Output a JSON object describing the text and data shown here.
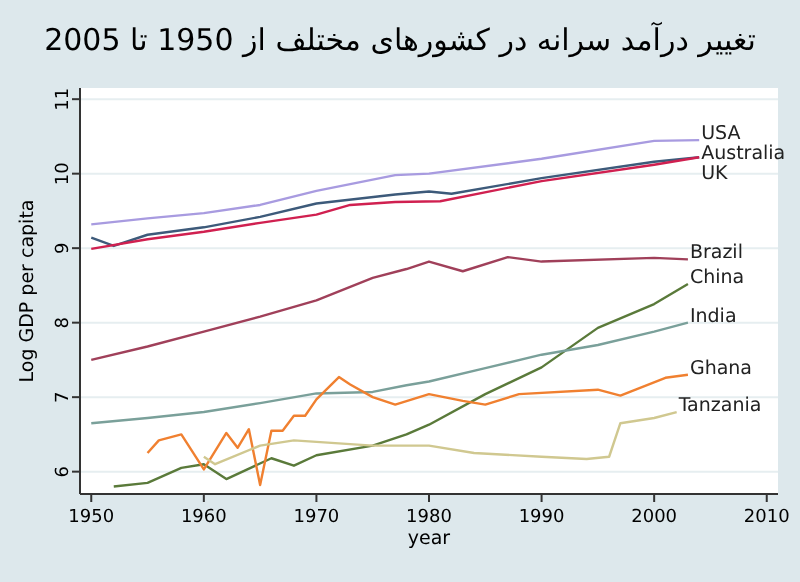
{
  "chart_data": {
    "type": "line",
    "title": "تغییر درآمد سرانه در کشورهای مختلف از 1950 تا 2005",
    "xlabel": "year",
    "ylabel": "Log GDP per capita",
    "xlim": [
      1949,
      2011
    ],
    "ylim": [
      5.7,
      11.15
    ],
    "xticks": [
      1950,
      1960,
      1970,
      1980,
      1990,
      2000,
      2010
    ],
    "yticks": [
      6,
      7,
      8,
      9,
      10,
      11
    ],
    "grid": "y",
    "series": [
      {
        "name": "USA",
        "color": "#a89be0",
        "x": [
          1950,
          1955,
          1960,
          1965,
          1970,
          1977,
          1980,
          1990,
          2000,
          2004
        ],
        "values": [
          9.32,
          9.4,
          9.47,
          9.58,
          9.77,
          9.98,
          10.0,
          10.2,
          10.44,
          10.45
        ]
      },
      {
        "name": "Australia",
        "color": "#3d5a7a",
        "x": [
          1950,
          1952,
          1955,
          1960,
          1965,
          1970,
          1977,
          1980,
          1982,
          1990,
          2000,
          2004
        ],
        "values": [
          9.14,
          9.03,
          9.18,
          9.28,
          9.42,
          9.6,
          9.72,
          9.76,
          9.73,
          9.94,
          10.16,
          10.22
        ]
      },
      {
        "name": "UK",
        "color": "#d02050",
        "x": [
          1950,
          1955,
          1960,
          1965,
          1970,
          1973,
          1977,
          1981,
          1990,
          2000,
          2004
        ],
        "values": [
          8.99,
          9.12,
          9.22,
          9.34,
          9.45,
          9.58,
          9.62,
          9.63,
          9.9,
          10.12,
          10.22
        ]
      },
      {
        "name": "Brazil",
        "color": "#a0405a",
        "x": [
          1950,
          1955,
          1960,
          1965,
          1970,
          1975,
          1978,
          1980,
          1983,
          1987,
          1990,
          2000,
          2003
        ],
        "values": [
          7.5,
          7.68,
          7.88,
          8.08,
          8.3,
          8.6,
          8.72,
          8.82,
          8.69,
          8.88,
          8.82,
          8.87,
          8.85
        ]
      },
      {
        "name": "China",
        "color": "#5a7a3a",
        "x": [
          1952,
          1955,
          1958,
          1960,
          1962,
          1966,
          1968,
          1970,
          1975,
          1978,
          1980,
          1985,
          1990,
          1995,
          2000,
          2003
        ],
        "values": [
          5.8,
          5.85,
          6.05,
          6.1,
          5.9,
          6.18,
          6.08,
          6.22,
          6.35,
          6.5,
          6.63,
          7.04,
          7.4,
          7.93,
          8.25,
          8.52
        ]
      },
      {
        "name": "India",
        "color": "#7aa09a",
        "x": [
          1950,
          1955,
          1960,
          1965,
          1970,
          1975,
          1978,
          1980,
          1985,
          1990,
          1995,
          2000,
          2003
        ],
        "values": [
          6.65,
          6.72,
          6.8,
          6.92,
          7.05,
          7.07,
          7.16,
          7.21,
          7.39,
          7.57,
          7.7,
          7.88,
          8.0
        ]
      },
      {
        "name": "Ghana",
        "color": "#f08030",
        "x": [
          1955,
          1956,
          1958,
          1960,
          1962,
          1963,
          1964,
          1965,
          1966,
          1967,
          1968,
          1969,
          1970,
          1972,
          1973,
          1975,
          1977,
          1980,
          1983,
          1985,
          1988,
          1995,
          1997,
          2001,
          2003
        ],
        "values": [
          6.25,
          6.42,
          6.5,
          6.03,
          6.52,
          6.32,
          6.57,
          5.82,
          6.55,
          6.55,
          6.75,
          6.75,
          6.97,
          7.27,
          7.17,
          7.0,
          6.9,
          7.04,
          6.95,
          6.9,
          7.04,
          7.1,
          7.02,
          7.26,
          7.3
        ]
      },
      {
        "name": "Tanzania",
        "color": "#d0c890",
        "x": [
          1960,
          1961,
          1965,
          1968,
          1970,
          1975,
          1980,
          1984,
          1990,
          1994,
          1996,
          1997,
          2000,
          2002
        ],
        "values": [
          6.2,
          6.1,
          6.35,
          6.42,
          6.4,
          6.35,
          6.35,
          6.25,
          6.2,
          6.17,
          6.2,
          6.65,
          6.72,
          6.8
        ]
      }
    ]
  }
}
